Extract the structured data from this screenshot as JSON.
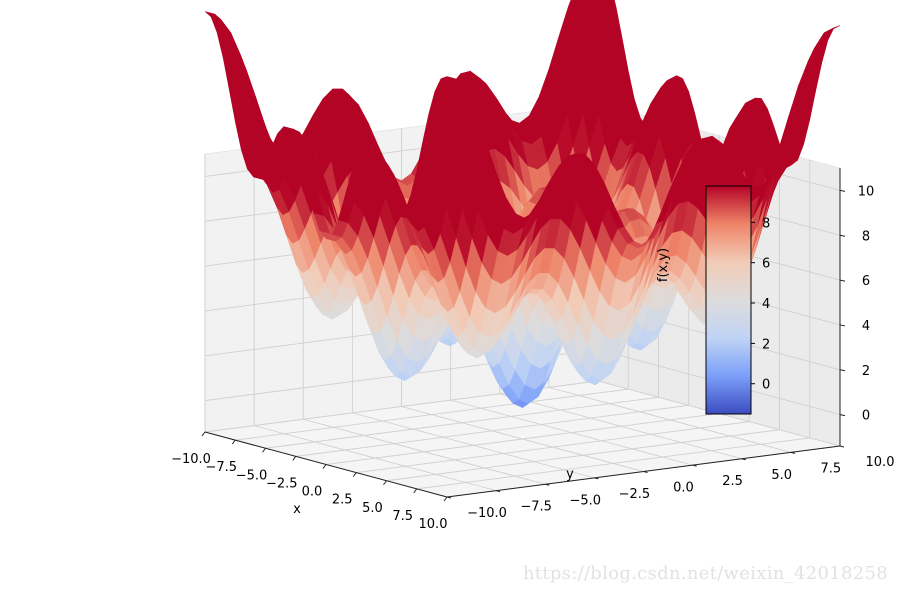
{
  "chart_data": {
    "type": "surface3d",
    "function": "x^2/20 + y^2/20 - 2 cos(x) - 2 cos(y) + 4 (two-dimensional Rastrigin-type surface)",
    "x_range": [
      -10,
      10
    ],
    "y_range": [
      -10,
      10
    ],
    "x_ticks": [
      "−10.0",
      "−7.5",
      "−5.0",
      "−2.5",
      "0.0",
      "2.5",
      "5.0",
      "7.5",
      "10.0"
    ],
    "y_ticks": [
      "−10.0",
      "−7.5",
      "−5.0",
      "−2.5",
      "0.0",
      "2.5",
      "5.0",
      "7.5",
      "10.0"
    ],
    "z_ticks": [
      "0",
      "2",
      "4",
      "6",
      "8",
      "10"
    ],
    "z_tick_values": [
      0,
      2,
      4,
      6,
      8,
      10
    ],
    "zlim": [
      -1.4,
      11
    ],
    "xlabel": "x",
    "ylabel": "y",
    "zlabel": "f(x,y)",
    "colormap": "coolwarm",
    "colormap_stops": [
      "#3b4cc0",
      "#7b9ff9",
      "#c0d4f5",
      "#dddcdc",
      "#f2cbb7",
      "#ee8468",
      "#b40426"
    ],
    "colorbar": {
      "range": [
        -1.5,
        9.8
      ],
      "ticks": [
        "0",
        "2",
        "4",
        "6",
        "8"
      ],
      "tick_values": [
        0,
        2,
        4,
        6,
        8
      ]
    },
    "grid": true
  },
  "watermark": "https://blog.csdn.net/weixin_42018258"
}
